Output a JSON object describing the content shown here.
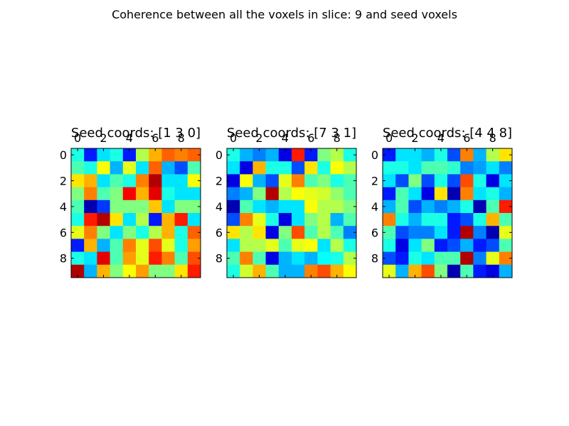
{
  "figure": {
    "title": "Coherence between all the voxels in slice: 9 and seed voxels"
  },
  "colormap": {
    "name": "jet",
    "stops": [
      "#00007f",
      "#0000ff",
      "#00ffff",
      "#ffff00",
      "#ff0000",
      "#7f0000"
    ]
  },
  "chart_data": [
    {
      "type": "heatmap",
      "title": "Seed coords: [1 3 0]",
      "x_ticks": [
        0,
        2,
        4,
        6,
        8
      ],
      "y_ticks": [
        0,
        2,
        4,
        6,
        8
      ],
      "x_ticks_position": "top",
      "vmin": 0,
      "vmax": 1,
      "grid": false,
      "values": [
        [
          0.4,
          0.15,
          0.35,
          0.4,
          0.15,
          0.55,
          0.7,
          0.78,
          0.75,
          0.78
        ],
        [
          0.45,
          0.4,
          0.62,
          0.3,
          0.6,
          0.35,
          0.78,
          0.3,
          0.2,
          0.45
        ],
        [
          0.65,
          0.7,
          0.35,
          0.45,
          0.4,
          0.75,
          0.95,
          0.35,
          0.35,
          0.62
        ],
        [
          0.5,
          0.75,
          0.45,
          0.5,
          0.88,
          0.7,
          0.9,
          0.4,
          0.35,
          0.35
        ],
        [
          0.45,
          0.05,
          0.18,
          0.5,
          0.5,
          0.5,
          0.68,
          0.35,
          0.5,
          0.5
        ],
        [
          0.4,
          0.85,
          0.95,
          0.65,
          0.35,
          0.55,
          0.15,
          0.7,
          0.85,
          0.35
        ],
        [
          0.6,
          0.75,
          0.5,
          0.35,
          0.5,
          0.4,
          0.55,
          0.7,
          0.4,
          0.78
        ],
        [
          0.15,
          0.7,
          0.3,
          0.45,
          0.75,
          0.6,
          0.8,
          0.6,
          0.4,
          0.72
        ],
        [
          0.4,
          0.35,
          0.9,
          0.45,
          0.72,
          0.6,
          0.85,
          0.75,
          0.45,
          0.8
        ],
        [
          0.95,
          0.3,
          0.7,
          0.5,
          0.62,
          0.72,
          0.5,
          0.5,
          0.65,
          0.85
        ]
      ]
    },
    {
      "type": "heatmap",
      "title": "Seed coords: [7 3 1]",
      "x_ticks": [
        0,
        2,
        4,
        6,
        8
      ],
      "y_ticks": [
        0,
        2,
        4,
        6,
        8
      ],
      "x_ticks_position": "top",
      "vmin": 0,
      "vmax": 1,
      "grid": false,
      "values": [
        [
          0.4,
          0.3,
          0.25,
          0.3,
          0.1,
          0.85,
          0.15,
          0.5,
          0.55,
          0.4
        ],
        [
          0.35,
          0.1,
          0.7,
          0.4,
          0.4,
          0.2,
          0.65,
          0.4,
          0.62,
          0.55
        ],
        [
          0.1,
          0.62,
          0.3,
          0.2,
          0.6,
          0.75,
          0.45,
          0.5,
          0.4,
          0.45
        ],
        [
          0.25,
          0.3,
          0.5,
          0.95,
          0.55,
          0.62,
          0.6,
          0.58,
          0.52,
          0.45
        ],
        [
          0.05,
          0.45,
          0.35,
          0.3,
          0.35,
          0.35,
          0.62,
          0.55,
          0.55,
          0.5
        ],
        [
          0.2,
          0.75,
          0.6,
          0.4,
          0.1,
          0.35,
          0.5,
          0.55,
          0.3,
          0.45
        ],
        [
          0.65,
          0.55,
          0.65,
          0.1,
          0.5,
          0.8,
          0.45,
          0.55,
          0.45,
          0.25
        ],
        [
          0.35,
          0.55,
          0.55,
          0.6,
          0.45,
          0.6,
          0.62,
          0.35,
          0.55,
          0.4
        ],
        [
          0.45,
          0.75,
          0.45,
          0.1,
          0.3,
          0.35,
          0.3,
          0.38,
          0.4,
          0.55
        ],
        [
          0.4,
          0.58,
          0.7,
          0.45,
          0.3,
          0.3,
          0.75,
          0.8,
          0.7,
          0.62
        ]
      ]
    },
    {
      "type": "heatmap",
      "title": "Seed coords: [4 4 8]",
      "x_ticks": [
        0,
        2,
        4,
        6,
        8
      ],
      "y_ticks": [
        0,
        2,
        4,
        6,
        8
      ],
      "x_ticks_position": "top",
      "vmin": 0,
      "vmax": 1,
      "grid": false,
      "values": [
        [
          0.15,
          0.35,
          0.35,
          0.3,
          0.4,
          0.2,
          0.75,
          0.3,
          0.55,
          0.65
        ],
        [
          0.4,
          0.4,
          0.35,
          0.45,
          0.45,
          0.42,
          0.25,
          0.28,
          0.35,
          0.25
        ],
        [
          0.35,
          0.2,
          0.5,
          0.2,
          0.4,
          0.2,
          0.8,
          0.4,
          0.1,
          0.35
        ],
        [
          0.15,
          0.45,
          0.35,
          0.1,
          0.65,
          0.05,
          0.75,
          0.35,
          0.4,
          0.3
        ],
        [
          0.3,
          0.45,
          0.2,
          0.3,
          0.25,
          0.3,
          0.4,
          0.05,
          0.45,
          0.85
        ],
        [
          0.75,
          0.4,
          0.3,
          0.4,
          0.4,
          0.15,
          0.2,
          0.4,
          0.7,
          0.45
        ],
        [
          0.45,
          0.2,
          0.25,
          0.25,
          0.35,
          0.15,
          0.95,
          0.25,
          0.05,
          0.6
        ],
        [
          0.4,
          0.1,
          0.35,
          0.5,
          0.15,
          0.2,
          0.3,
          0.15,
          0.2,
          0.45
        ],
        [
          0.2,
          0.15,
          0.4,
          0.35,
          0.45,
          0.45,
          0.95,
          0.25,
          0.6,
          0.75
        ],
        [
          0.6,
          0.3,
          0.7,
          0.8,
          0.5,
          0.05,
          0.45,
          0.15,
          0.1,
          0.3
        ]
      ]
    }
  ]
}
